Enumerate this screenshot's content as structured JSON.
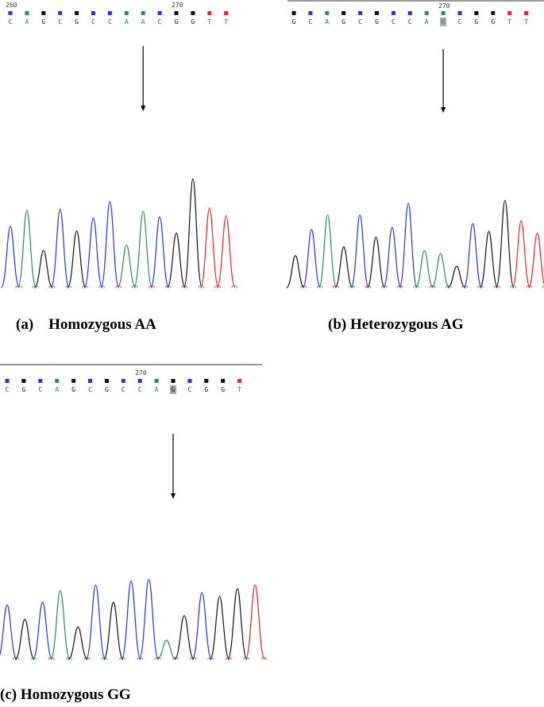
{
  "colors": {
    "A": "#2e8b57",
    "C": "#2233ee",
    "G": "#111111",
    "T": "#ee2222"
  },
  "panels": [
    {
      "id": "a",
      "caption": "(a)    Homozygous AA",
      "tick_labels": [
        {
          "text": "260",
          "base_index": 0
        },
        {
          "text": "270",
          "base_index": 10
        }
      ],
      "sequence": [
        "C",
        "A",
        "G",
        "C",
        "G",
        "C",
        "C",
        "A",
        "A",
        "C",
        "G",
        "G",
        "T",
        "T"
      ],
      "highlight_index": null,
      "arrow_base_index": 8,
      "peaks": [
        {
          "base": "C",
          "height": 0.56
        },
        {
          "base": "A",
          "height": 0.71
        },
        {
          "base": "G",
          "height": 0.34
        },
        {
          "base": "C",
          "height": 0.72
        },
        {
          "base": "G",
          "height": 0.52
        },
        {
          "base": "C",
          "height": 0.64
        },
        {
          "base": "C",
          "height": 0.79
        },
        {
          "base": "A",
          "height": 0.39
        },
        {
          "base": "A",
          "height": 0.7
        },
        {
          "base": "C",
          "height": 0.65
        },
        {
          "base": "G",
          "height": 0.5
        },
        {
          "base": "G",
          "height": 1.0
        },
        {
          "base": "T",
          "height": 0.73
        },
        {
          "base": "T",
          "height": 0.66
        }
      ]
    },
    {
      "id": "b",
      "caption": "(b) Heterozygous AG",
      "tick_labels": [
        {
          "text": "270",
          "base_index": 9
        }
      ],
      "sequence": [
        "G",
        "C",
        "A",
        "G",
        "C",
        "G",
        "C",
        "C",
        "A",
        "R",
        "C",
        "G",
        "G",
        "T",
        "T"
      ],
      "highlight_index": 9,
      "arrow_base_index": 9,
      "peaks": [
        {
          "base": "G",
          "height": 0.33
        },
        {
          "base": "C",
          "height": 0.6
        },
        {
          "base": "A",
          "height": 0.75
        },
        {
          "base": "G",
          "height": 0.42
        },
        {
          "base": "C",
          "height": 0.75
        },
        {
          "base": "G",
          "height": 0.52
        },
        {
          "base": "C",
          "height": 0.62
        },
        {
          "base": "C",
          "height": 0.87
        },
        {
          "base": "A",
          "height": 0.38
        },
        {
          "base": "A",
          "height": 0.35
        },
        {
          "base": "G",
          "height": 0.22
        },
        {
          "base": "C",
          "height": 0.66
        },
        {
          "base": "G",
          "height": 0.58
        },
        {
          "base": "G",
          "height": 0.9
        },
        {
          "base": "T",
          "height": 0.69
        },
        {
          "base": "T",
          "height": 0.56
        }
      ]
    },
    {
      "id": "c",
      "caption": "(c) Homozygous GG",
      "tick_labels": [
        {
          "text": "270",
          "base_index": 8
        }
      ],
      "sequence": [
        "C",
        "G",
        "C",
        "A",
        "G",
        "C",
        "G",
        "C",
        "C",
        "A",
        "G",
        "C",
        "G",
        "G",
        "T"
      ],
      "highlight_index": 10,
      "arrow_base_index": 10,
      "peaks": [
        {
          "base": "C",
          "height": 0.57
        },
        {
          "base": "G",
          "height": 0.42
        },
        {
          "base": "C",
          "height": 0.6
        },
        {
          "base": "A",
          "height": 0.72
        },
        {
          "base": "G",
          "height": 0.34
        },
        {
          "base": "C",
          "height": 0.78
        },
        {
          "base": "G",
          "height": 0.6
        },
        {
          "base": "C",
          "height": 0.82
        },
        {
          "base": "C",
          "height": 0.84
        },
        {
          "base": "A",
          "height": 0.2
        },
        {
          "base": "G",
          "height": 0.46
        },
        {
          "base": "C",
          "height": 0.7
        },
        {
          "base": "G",
          "height": 0.66
        },
        {
          "base": "G",
          "height": 0.74
        },
        {
          "base": "T",
          "height": 0.78
        }
      ]
    }
  ]
}
